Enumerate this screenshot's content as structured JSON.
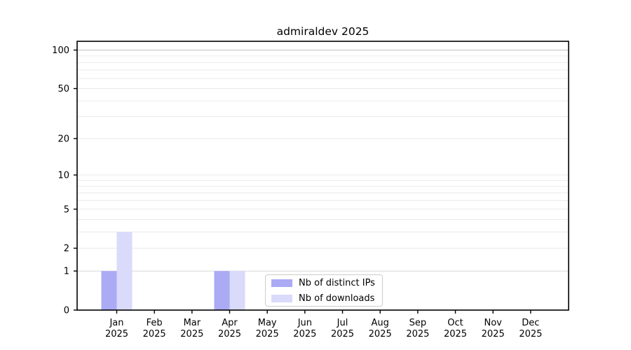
{
  "chart_data": {
    "type": "bar",
    "title": "admiraldev 2025",
    "categories": [
      "Jan",
      "Feb",
      "Mar",
      "Apr",
      "May",
      "Jun",
      "Jul",
      "Aug",
      "Sep",
      "Oct",
      "Nov",
      "Dec"
    ],
    "category_year": "2025",
    "series": [
      {
        "name": "Nb of distinct IPs",
        "color": "#aaaaf5",
        "values": [
          1,
          0,
          0,
          1,
          0,
          0,
          0,
          0,
          0,
          0,
          0,
          0
        ]
      },
      {
        "name": "Nb of downloads",
        "color": "#dadafb",
        "values": [
          3,
          0,
          0,
          1,
          0,
          0,
          0,
          0,
          0,
          0,
          0,
          0
        ]
      }
    ],
    "y_scale": "log1p",
    "ylim": [
      0,
      117
    ],
    "y_ticks": [
      0,
      1,
      2,
      5,
      10,
      20,
      50,
      100
    ],
    "gridline_values": [
      1,
      2,
      3,
      4,
      5,
      6,
      7,
      8,
      9,
      10,
      20,
      30,
      40,
      50,
      60,
      70,
      80,
      90,
      100
    ],
    "grid_on": true,
    "legend_position": "bottom-center",
    "colors": {
      "axis": "#000000",
      "tick_label": "#000000",
      "grid_minor": "#eaeaea",
      "grid_at_1": "#d8d8d8",
      "grid_at_100": "#c0c0c0",
      "background": "#ffffff"
    }
  }
}
